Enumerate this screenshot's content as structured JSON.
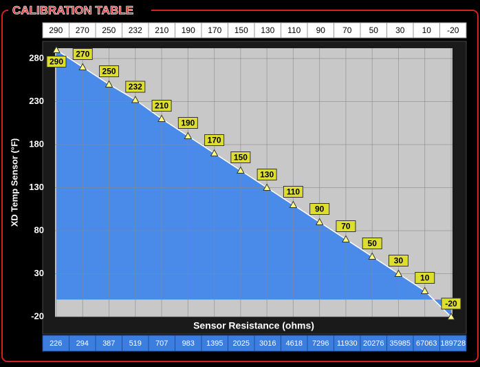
{
  "chart_data": {
    "type": "area",
    "title": "CALIBRATION TABLE",
    "y_label": "XD Temp Sensor (°F)",
    "x_label": "Sensor Resistance (ohms)",
    "categories": [
      226,
      294,
      387,
      519,
      707,
      983,
      1395,
      2025,
      3016,
      4618,
      7296,
      11930,
      20276,
      35985,
      67063,
      189728
    ],
    "values": [
      290,
      270,
      250,
      232,
      210,
      190,
      170,
      150,
      130,
      110,
      90,
      70,
      50,
      30,
      10,
      -20
    ],
    "color": "#4a8ae8",
    "line_color": "#ffffff",
    "marker_color": "#ffff80",
    "label_color": "#dede30",
    "ylim": [
      -20,
      292
    ],
    "yticks": [
      -20,
      30,
      80,
      130,
      180,
      230,
      280
    ],
    "grid": true
  }
}
